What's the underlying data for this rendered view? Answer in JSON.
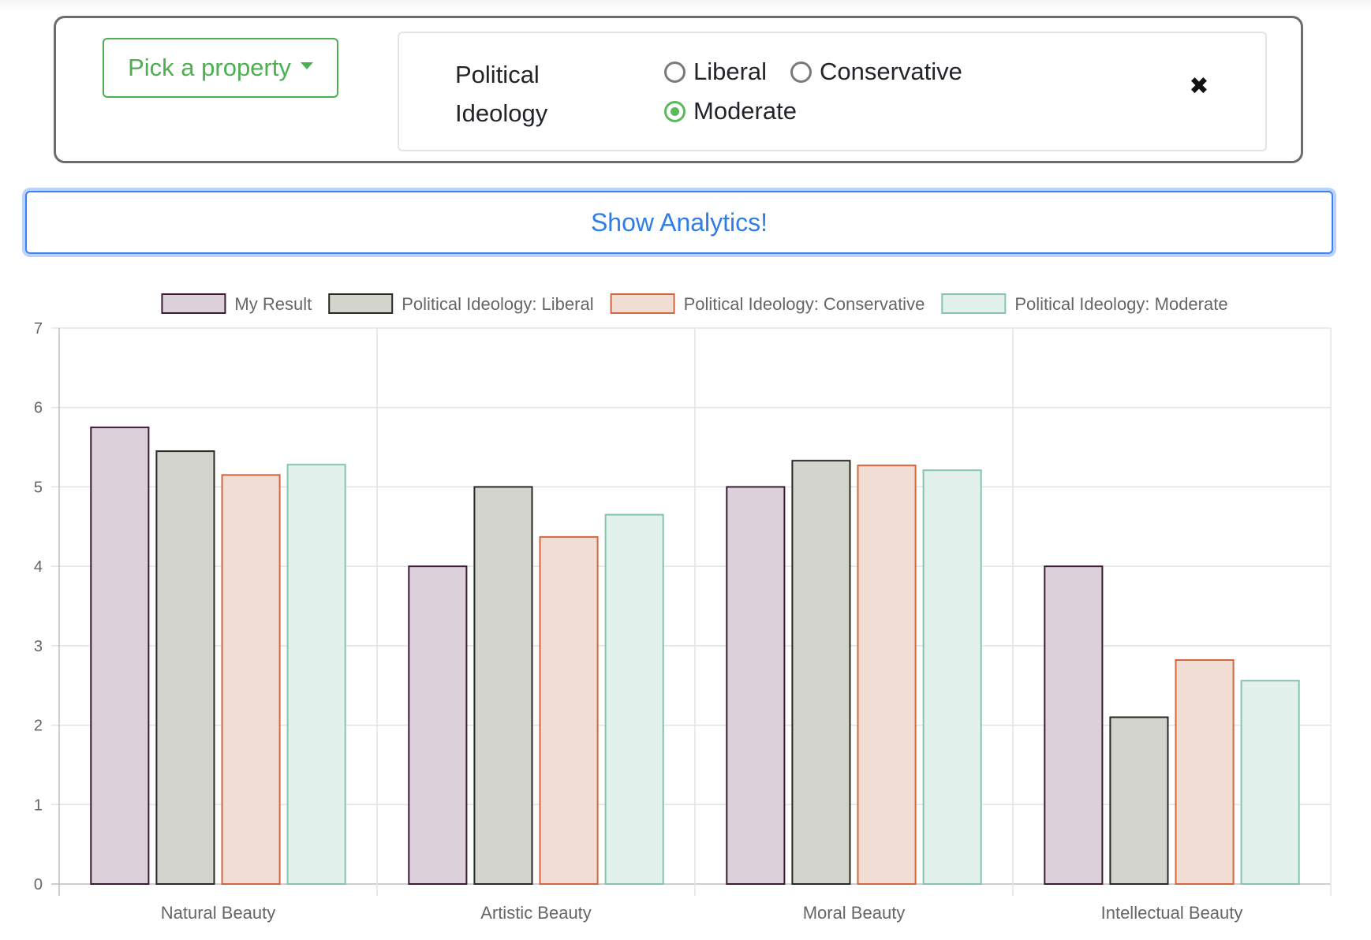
{
  "filter": {
    "pick_label": "Pick a property",
    "property": {
      "label": "Political Ideology",
      "options": [
        {
          "label": "Liberal",
          "checked": false
        },
        {
          "label": "Conservative",
          "checked": false
        },
        {
          "label": "Moderate",
          "checked": true
        }
      ]
    },
    "close_glyph": "✖"
  },
  "analytics_button": "Show Analytics!",
  "colors": {
    "accent_green": "#4caf50",
    "accent_blue": "#2f7ee6"
  },
  "chart_data": {
    "type": "bar",
    "categories": [
      "Natural Beauty",
      "Artistic Beauty",
      "Moral Beauty",
      "Intellectual Beauty"
    ],
    "ylim": [
      0,
      7
    ],
    "yticks": [
      0,
      1,
      2,
      3,
      4,
      5,
      6,
      7
    ],
    "grid": true,
    "legend_position": "top",
    "series": [
      {
        "name": "My Result",
        "values": [
          5.75,
          4.0,
          5.0,
          4.0
        ],
        "fill": "#dcd1db",
        "stroke": "#3d1b35"
      },
      {
        "name": "Political Ideology: Liberal",
        "values": [
          5.45,
          5.0,
          5.33,
          2.1
        ],
        "fill": "#d3d4cd",
        "stroke": "#262a20"
      },
      {
        "name": "Political Ideology: Conservative",
        "values": [
          5.15,
          4.37,
          5.27,
          2.82
        ],
        "fill": "#f2ddd5",
        "stroke": "#d0673f"
      },
      {
        "name": "Political Ideology: Moderate",
        "values": [
          5.28,
          4.65,
          5.21,
          2.56
        ],
        "fill": "#e2f1ec",
        "stroke": "#85c6ab"
      }
    ]
  }
}
